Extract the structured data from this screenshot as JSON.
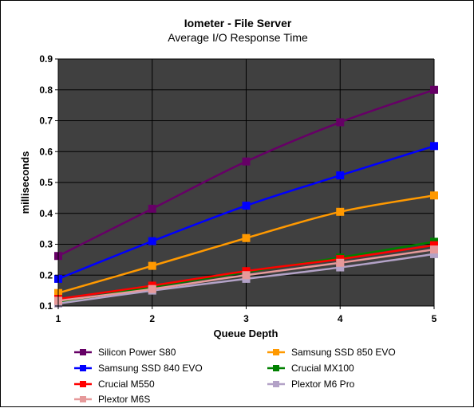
{
  "chart_data": {
    "type": "line",
    "title": "Iometer - File Server",
    "subtitle": "Average I/O Response Time",
    "xlabel": "Queue Depth",
    "ylabel": "milliseconds",
    "x": [
      1,
      2,
      3,
      4,
      5
    ],
    "ylim": [
      0.1,
      0.9
    ],
    "yticks": [
      "0.1",
      "0.2",
      "0.3",
      "0.4",
      "0.5",
      "0.6",
      "0.7",
      "0.8",
      "0.9"
    ],
    "xticks": [
      "1",
      "2",
      "3",
      "4",
      "5"
    ],
    "plot_background": "#404040",
    "grid": true,
    "gridline_color": "#000000",
    "legend_position": "bottom",
    "series": [
      {
        "name": "Silicon Power S80",
        "color": "#660066",
        "values": [
          0.262,
          0.415,
          0.568,
          0.695,
          0.8
        ]
      },
      {
        "name": "Samsung SSD 850 EVO",
        "color": "#FF9900",
        "values": [
          0.142,
          0.23,
          0.32,
          0.405,
          0.458
        ]
      },
      {
        "name": "Samsung SSD 840 EVO",
        "color": "#0000FF",
        "values": [
          0.188,
          0.31,
          0.425,
          0.523,
          0.618
        ]
      },
      {
        "name": "Crucial MX100",
        "color": "#008000",
        "values": [
          0.111,
          0.162,
          0.21,
          0.257,
          0.308
        ]
      },
      {
        "name": "Crucial M550",
        "color": "#FF0000",
        "values": [
          0.123,
          0.166,
          0.213,
          0.252,
          0.297
        ]
      },
      {
        "name": "Plextor M6 Pro",
        "color": "#B3A2C7",
        "values": [
          0.108,
          0.15,
          0.188,
          0.225,
          0.268
        ]
      },
      {
        "name": "Plextor M6S",
        "color": "#E6999A",
        "values": [
          0.117,
          0.155,
          0.2,
          0.24,
          0.283
        ]
      }
    ]
  }
}
